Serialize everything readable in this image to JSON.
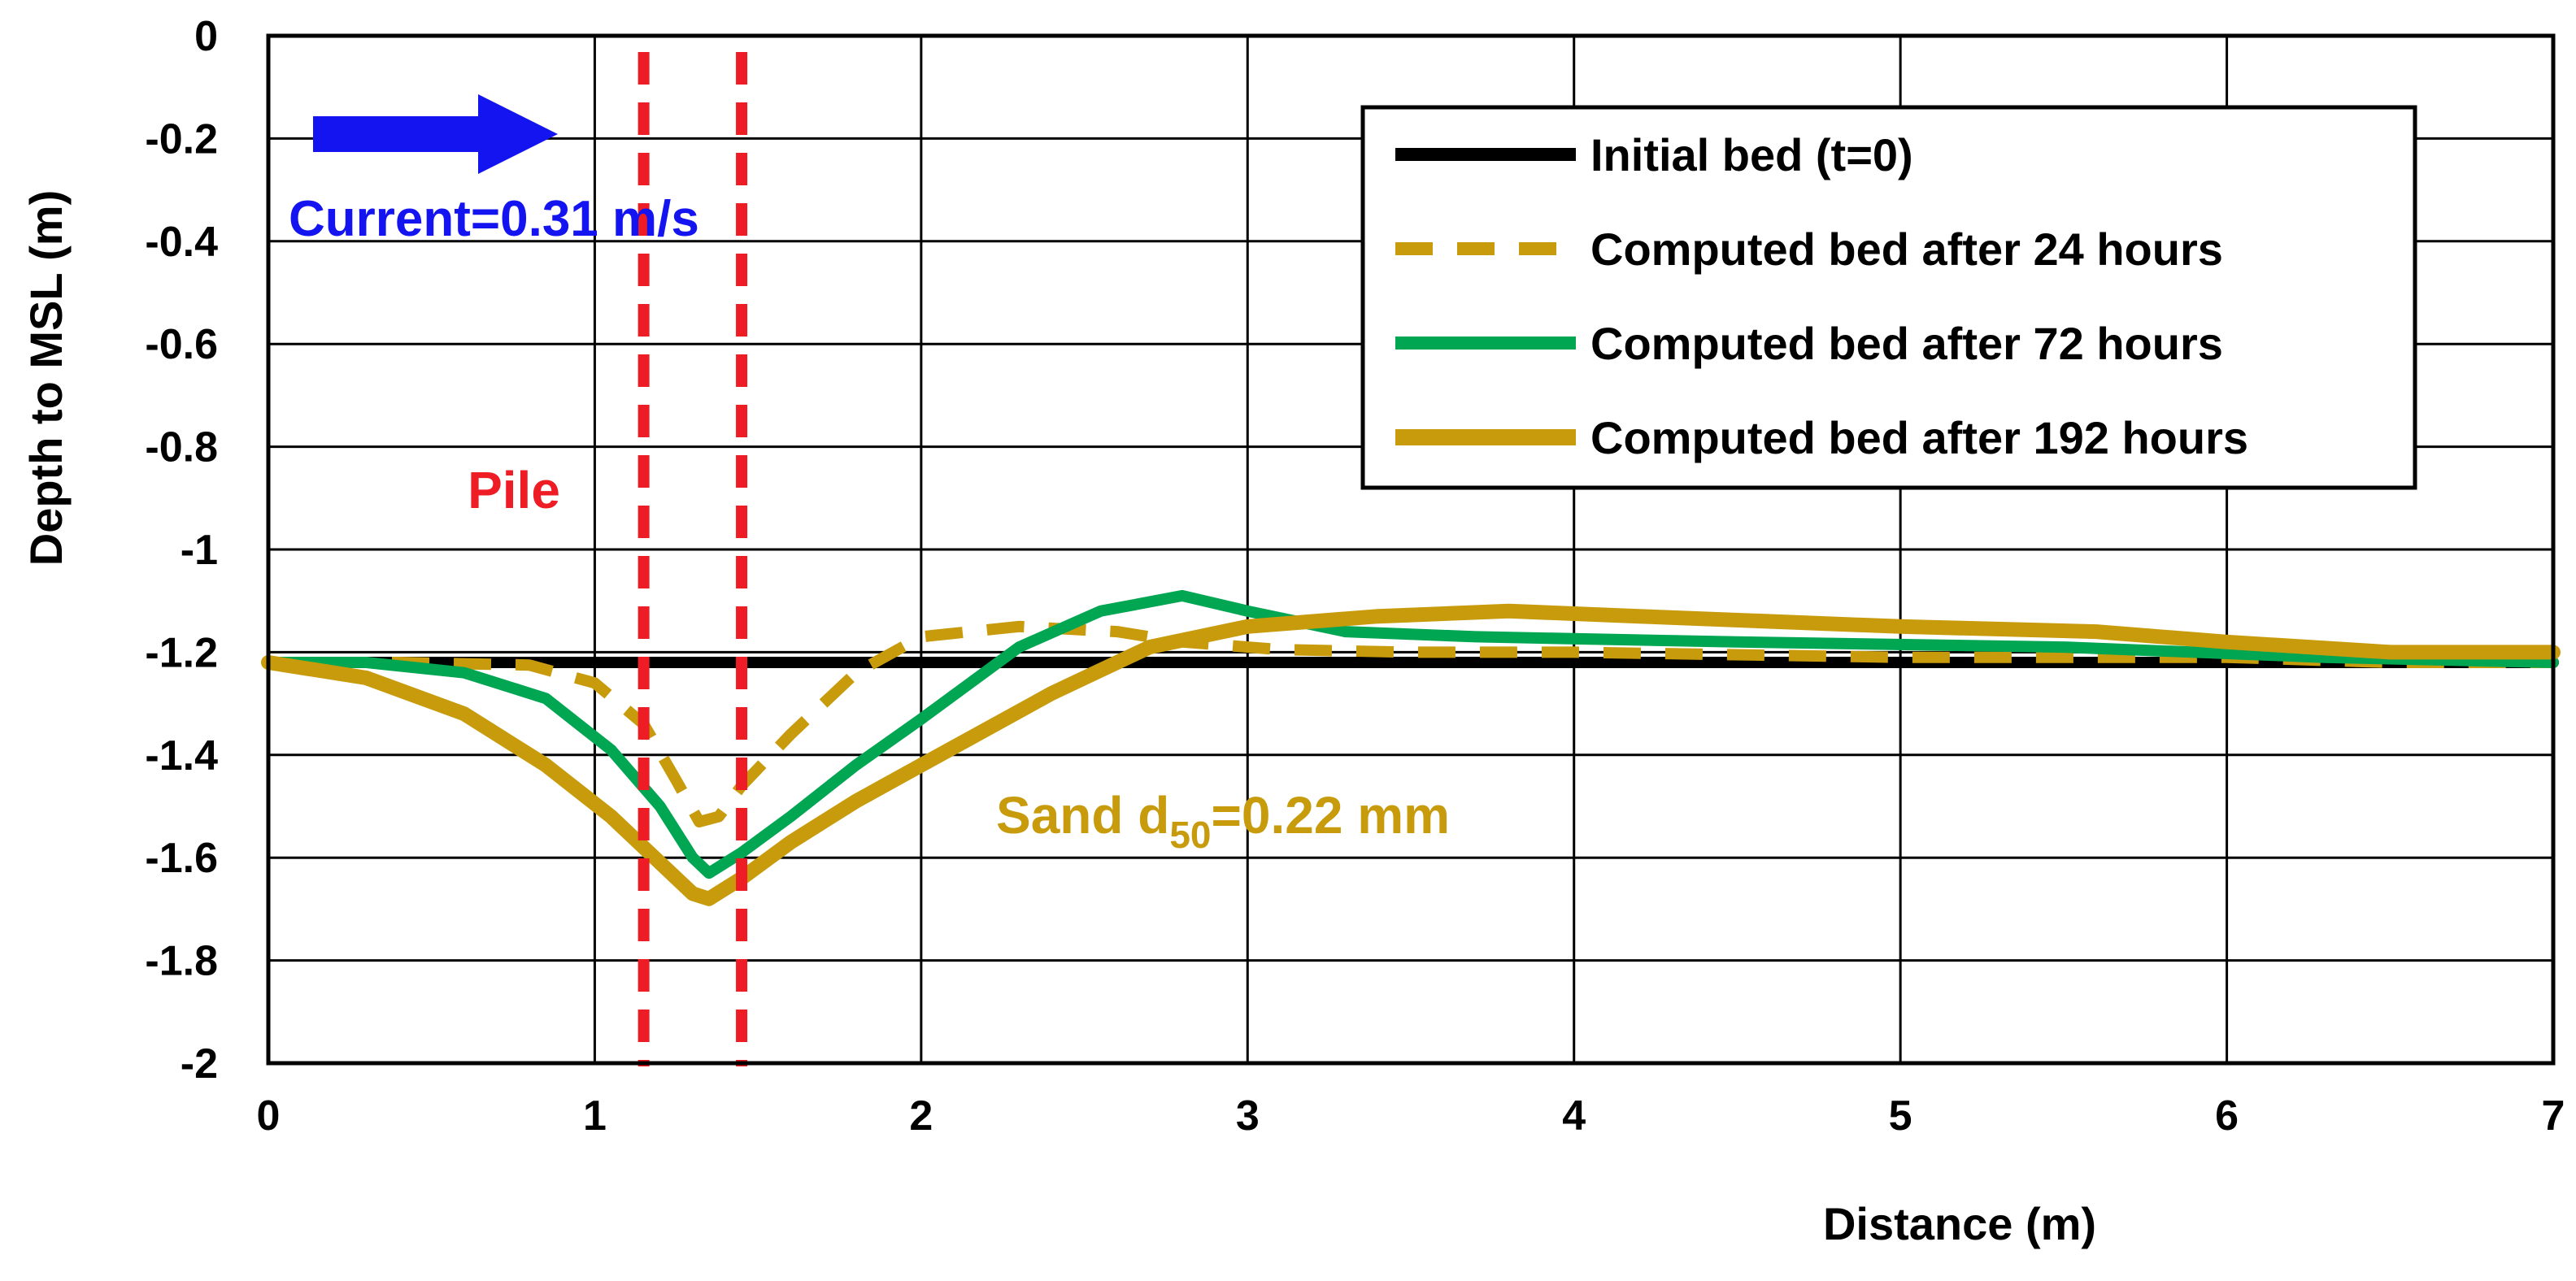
{
  "chart_data": {
    "type": "line",
    "xlabel": "Distance (m)",
    "ylabel": "Depth to MSL (m)",
    "xlim": [
      0,
      7
    ],
    "ylim": [
      -2,
      0
    ],
    "x_ticks": [
      0,
      1,
      2,
      3,
      4,
      5,
      6,
      7
    ],
    "y_ticks": [
      0,
      -0.2,
      -0.4,
      -0.6,
      -0.8,
      -1,
      -1.2,
      -1.4,
      -1.6,
      -1.8,
      -2
    ],
    "grid": true,
    "legend_position": "top-right",
    "series": [
      {
        "name": "Initial bed (t=0)",
        "color": "#000000",
        "style": "solid",
        "points": [
          [
            0,
            -1.22
          ],
          [
            7,
            -1.22
          ]
        ]
      },
      {
        "name": "Computed bed after 24 hours",
        "color": "#C89B0C",
        "style": "dashed",
        "points": [
          [
            0,
            -1.22
          ],
          [
            0.4,
            -1.22
          ],
          [
            0.8,
            -1.225
          ],
          [
            1.0,
            -1.26
          ],
          [
            1.15,
            -1.34
          ],
          [
            1.25,
            -1.45
          ],
          [
            1.32,
            -1.53
          ],
          [
            1.38,
            -1.52
          ],
          [
            1.45,
            -1.46
          ],
          [
            1.6,
            -1.36
          ],
          [
            1.8,
            -1.24
          ],
          [
            2.0,
            -1.17
          ],
          [
            2.3,
            -1.15
          ],
          [
            2.6,
            -1.16
          ],
          [
            2.8,
            -1.18
          ],
          [
            3.1,
            -1.195
          ],
          [
            3.5,
            -1.2
          ],
          [
            4.0,
            -1.2
          ],
          [
            5.0,
            -1.21
          ],
          [
            6.0,
            -1.21
          ],
          [
            6.5,
            -1.22
          ],
          [
            7.0,
            -1.22
          ]
        ]
      },
      {
        "name": "Computed bed after 72 hours",
        "color": "#00A651",
        "style": "solid",
        "points": [
          [
            0,
            -1.22
          ],
          [
            0.3,
            -1.22
          ],
          [
            0.6,
            -1.24
          ],
          [
            0.85,
            -1.29
          ],
          [
            1.05,
            -1.39
          ],
          [
            1.2,
            -1.5
          ],
          [
            1.3,
            -1.6
          ],
          [
            1.35,
            -1.63
          ],
          [
            1.45,
            -1.59
          ],
          [
            1.6,
            -1.52
          ],
          [
            1.8,
            -1.42
          ],
          [
            2.0,
            -1.33
          ],
          [
            2.3,
            -1.19
          ],
          [
            2.55,
            -1.12
          ],
          [
            2.8,
            -1.09
          ],
          [
            3.0,
            -1.12
          ],
          [
            3.3,
            -1.16
          ],
          [
            3.7,
            -1.17
          ],
          [
            4.5,
            -1.18
          ],
          [
            5.5,
            -1.19
          ],
          [
            6.3,
            -1.21
          ],
          [
            7.0,
            -1.22
          ]
        ]
      },
      {
        "name": "Computed bed after 192 hours",
        "color": "#C89B0C",
        "style": "solid",
        "points": [
          [
            0,
            -1.22
          ],
          [
            0.3,
            -1.25
          ],
          [
            0.6,
            -1.32
          ],
          [
            0.85,
            -1.42
          ],
          [
            1.05,
            -1.52
          ],
          [
            1.2,
            -1.61
          ],
          [
            1.3,
            -1.67
          ],
          [
            1.35,
            -1.68
          ],
          [
            1.45,
            -1.64
          ],
          [
            1.6,
            -1.57
          ],
          [
            1.8,
            -1.49
          ],
          [
            2.0,
            -1.42
          ],
          [
            2.4,
            -1.28
          ],
          [
            2.7,
            -1.19
          ],
          [
            3.0,
            -1.15
          ],
          [
            3.4,
            -1.13
          ],
          [
            3.8,
            -1.12
          ],
          [
            4.2,
            -1.13
          ],
          [
            5.0,
            -1.15
          ],
          [
            5.6,
            -1.16
          ],
          [
            6.0,
            -1.18
          ],
          [
            6.5,
            -1.2
          ],
          [
            7.0,
            -1.2
          ]
        ]
      }
    ],
    "annotations": {
      "current": "Current=0.31 m/s",
      "pile": "Pile",
      "sand_prefix": "Sand d",
      "sand_sub": "50",
      "sand_suffix": "=0.22 mm"
    },
    "pile_lines_x": [
      1.15,
      1.45
    ],
    "colors": {
      "current": "#1414F0",
      "pile": "#EE1C25",
      "sand": "#C89B0C"
    }
  }
}
